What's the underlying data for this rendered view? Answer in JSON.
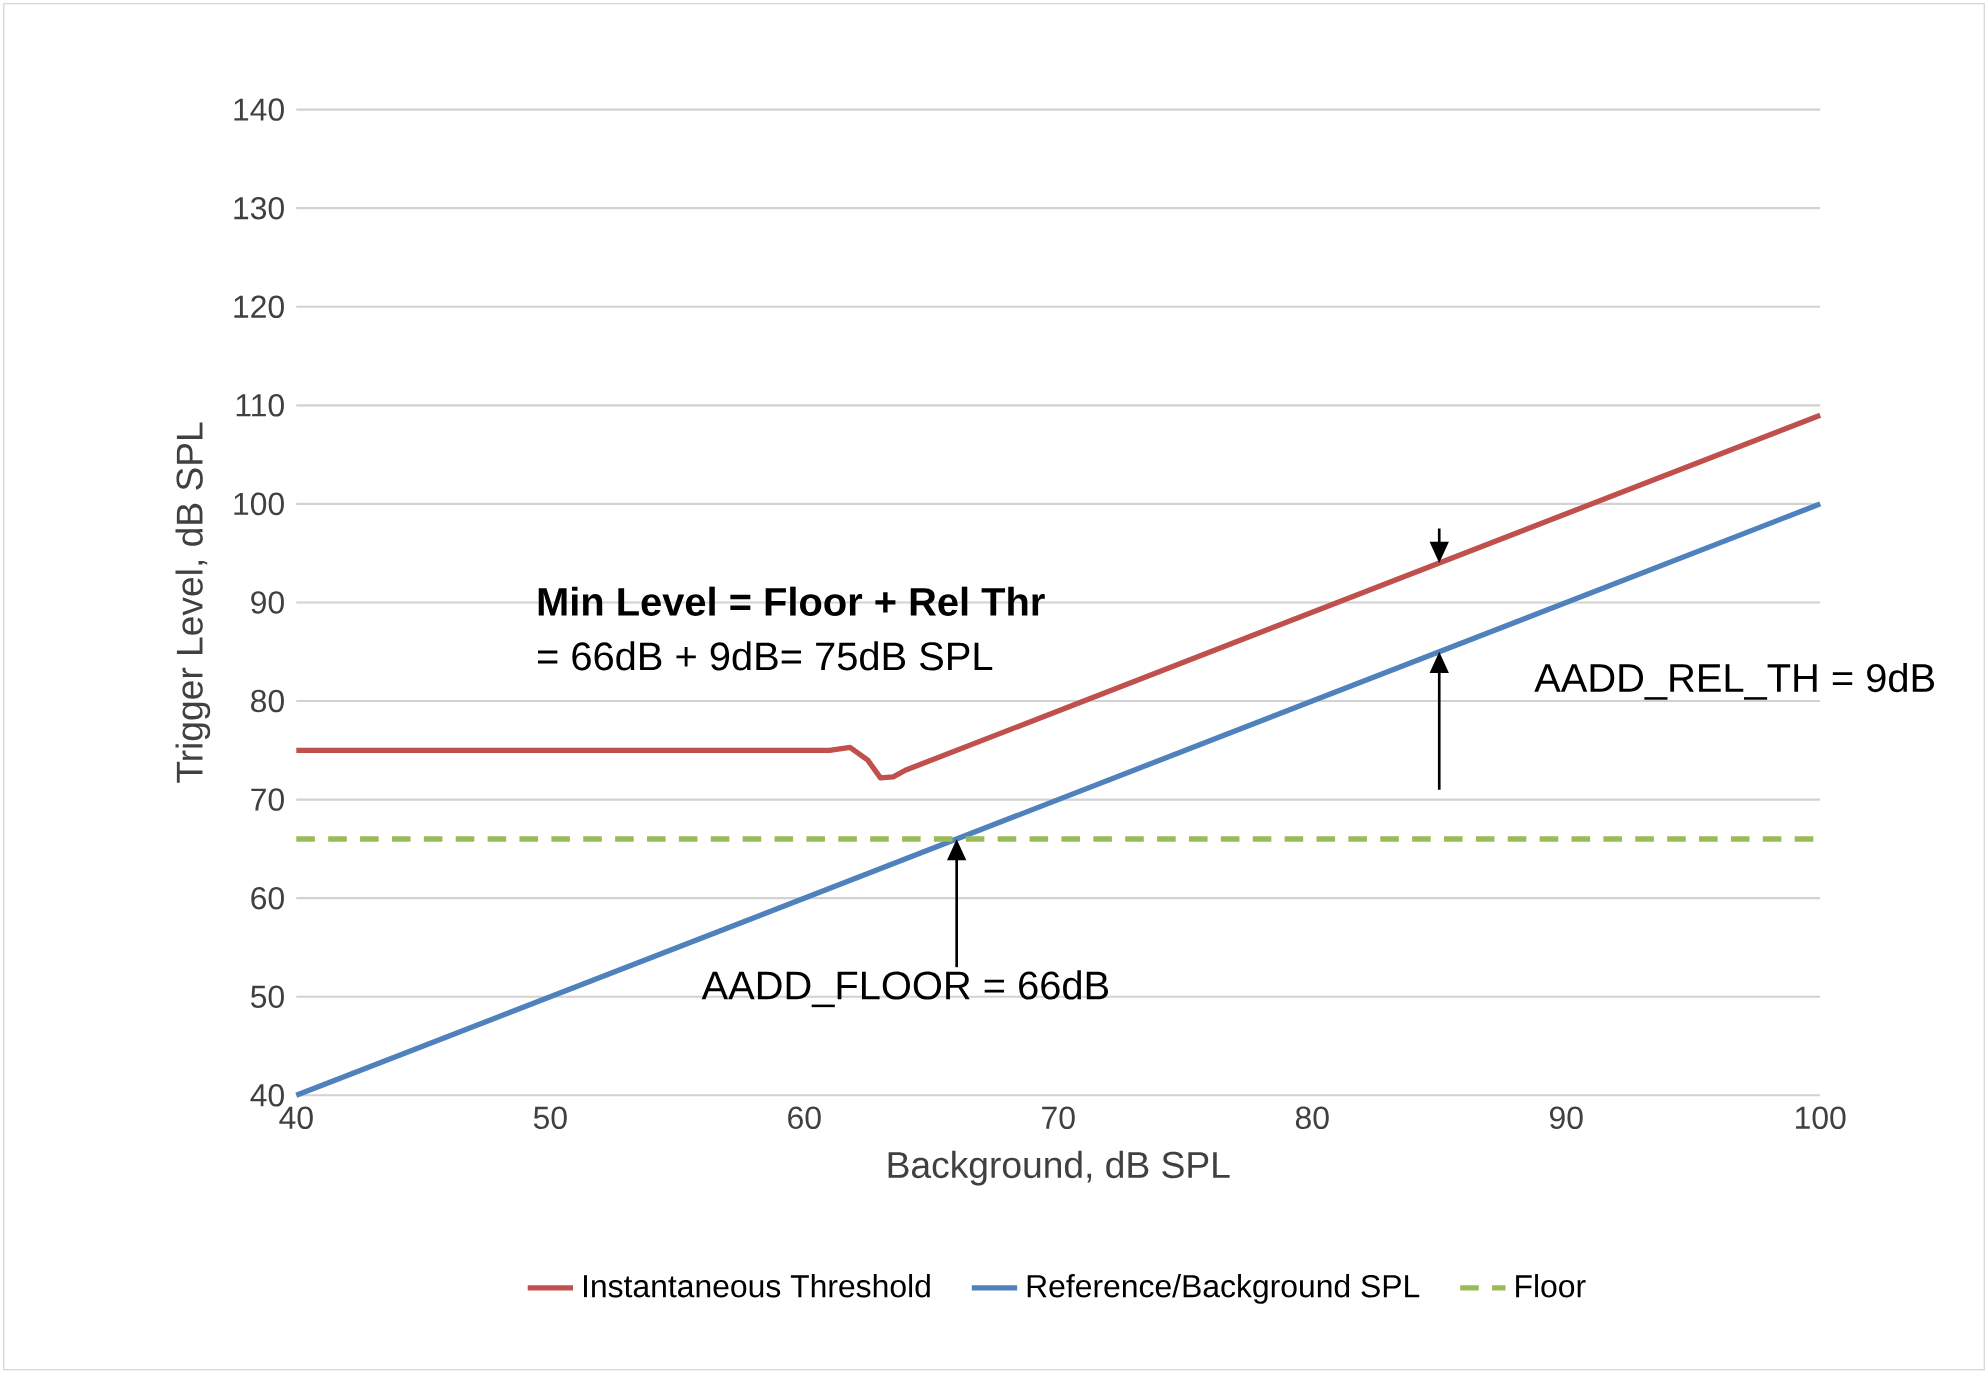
{
  "chart_data": {
    "type": "line",
    "xlabel": "Background, dB SPL",
    "ylabel": "Trigger Level, dB SPL",
    "xlim": [
      40,
      100
    ],
    "xticks": [
      40,
      50,
      60,
      70,
      80,
      90,
      100
    ],
    "ylim": [
      40,
      140
    ],
    "yticks": [
      40,
      50,
      60,
      70,
      80,
      90,
      100,
      110,
      120,
      130,
      140
    ],
    "grid": "y",
    "legend": "bottom",
    "marker": "none",
    "series": [
      {
        "name": "Instantaneous Threshold",
        "color": "#c0504d",
        "x": [
          40,
          61,
          61.8,
          62.5,
          63,
          63.5,
          64,
          100
        ],
        "values": [
          75,
          75,
          75.3,
          74,
          72.2,
          72.3,
          73,
          109
        ]
      },
      {
        "name": "Reference/Background SPL",
        "color": "#4f81bd",
        "x": [
          40,
          100
        ],
        "values": [
          40,
          100
        ]
      },
      {
        "name": "Floor",
        "color": "#9bbb59",
        "line_style": "dashed",
        "x": [
          40,
          100
        ],
        "values": [
          66,
          66
        ]
      }
    ],
    "annotations": [
      "Min Level = Floor + Rel Thr",
      "= 66dB + 9dB= 75dB SPL",
      {
        "text": "AADD_REL_TH = 9dB",
        "x": 85,
        "y": 85
      },
      "AADD_FLOOR = 66dB"
    ]
  }
}
